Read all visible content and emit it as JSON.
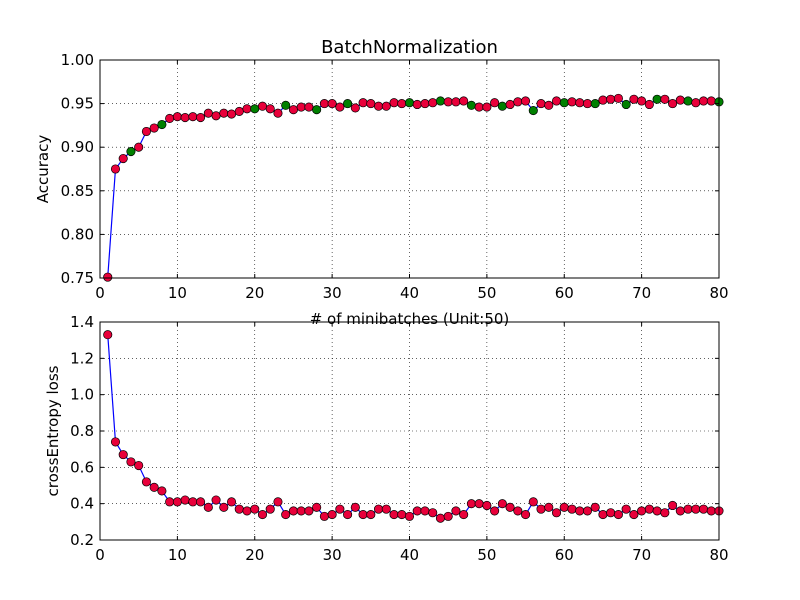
{
  "figure": {
    "background": "#ffffff",
    "line_color": "#0000ff",
    "marker_fill": "#e8003a",
    "marker_highlight_fill": "#008000"
  },
  "chart_data": [
    {
      "type": "line",
      "title": "BatchNormalization",
      "xlabel": "# of minibatches (Unit:50)",
      "ylabel": "Accuracy",
      "xlim": [
        0,
        80
      ],
      "ylim": [
        0.75,
        1.0
      ],
      "xticks": [
        "0",
        "10",
        "20",
        "30",
        "40",
        "50",
        "60",
        "70",
        "80"
      ],
      "yticks": [
        "0.75",
        "0.80",
        "0.85",
        "0.90",
        "0.95",
        "1.00"
      ],
      "grid": true,
      "series": [
        {
          "x": [
            1,
            2,
            3,
            4,
            5,
            6,
            7,
            8,
            9,
            10,
            11,
            12,
            13,
            14,
            15,
            16,
            17,
            18,
            19,
            20,
            21,
            22,
            23,
            24,
            25,
            26,
            27,
            28,
            29,
            30,
            31,
            32,
            33,
            34,
            35,
            36,
            37,
            38,
            39,
            40,
            41,
            42,
            43,
            44,
            45,
            46,
            47,
            48,
            49,
            50,
            51,
            52,
            53,
            54,
            55,
            56,
            57,
            58,
            59,
            60,
            61,
            62,
            63,
            64,
            65,
            66,
            67,
            68,
            69,
            70,
            71,
            72,
            73,
            74,
            75,
            76,
            77,
            78,
            79,
            80
          ],
          "values": [
            0.751,
            0.875,
            0.887,
            0.895,
            0.9,
            0.918,
            0.922,
            0.926,
            0.933,
            0.935,
            0.934,
            0.935,
            0.934,
            0.939,
            0.936,
            0.939,
            0.938,
            0.941,
            0.944,
            0.944,
            0.947,
            0.944,
            0.939,
            0.948,
            0.943,
            0.946,
            0.946,
            0.943,
            0.95,
            0.95,
            0.946,
            0.95,
            0.945,
            0.951,
            0.95,
            0.947,
            0.947,
            0.951,
            0.95,
            0.951,
            0.949,
            0.95,
            0.951,
            0.953,
            0.952,
            0.952,
            0.953,
            0.948,
            0.946,
            0.946,
            0.951,
            0.947,
            0.949,
            0.952,
            0.953,
            0.942,
            0.95,
            0.948,
            0.953,
            0.951,
            0.952,
            0.951,
            0.95,
            0.95,
            0.954,
            0.955,
            0.956,
            0.949,
            0.955,
            0.953,
            0.949,
            0.955,
            0.955,
            0.95,
            0.954,
            0.953,
            0.951,
            0.953,
            0.953,
            0.952
          ],
          "highlighted_x": [
            4,
            8,
            20,
            24,
            28,
            32,
            40,
            44,
            48,
            52,
            56,
            60,
            64,
            68,
            72,
            76,
            80
          ]
        }
      ]
    },
    {
      "type": "line",
      "title": "",
      "xlabel": "",
      "ylabel": "crossEntropy loss",
      "xlim": [
        0,
        80
      ],
      "ylim": [
        0.2,
        1.4
      ],
      "xticks": [
        "0",
        "10",
        "20",
        "30",
        "40",
        "50",
        "60",
        "70",
        "80"
      ],
      "yticks": [
        "0.2",
        "0.4",
        "0.6",
        "0.8",
        "1.0",
        "1.2",
        "1.4"
      ],
      "grid": true,
      "series": [
        {
          "x": [
            1,
            2,
            3,
            4,
            5,
            6,
            7,
            8,
            9,
            10,
            11,
            12,
            13,
            14,
            15,
            16,
            17,
            18,
            19,
            20,
            21,
            22,
            23,
            24,
            25,
            26,
            27,
            28,
            29,
            30,
            31,
            32,
            33,
            34,
            35,
            36,
            37,
            38,
            39,
            40,
            41,
            42,
            43,
            44,
            45,
            46,
            47,
            48,
            49,
            50,
            51,
            52,
            53,
            54,
            55,
            56,
            57,
            58,
            59,
            60,
            61,
            62,
            63,
            64,
            65,
            66,
            67,
            68,
            69,
            70,
            71,
            72,
            73,
            74,
            75,
            76,
            77,
            78,
            79,
            80
          ],
          "values": [
            1.33,
            0.74,
            0.67,
            0.63,
            0.61,
            0.52,
            0.49,
            0.47,
            0.41,
            0.41,
            0.42,
            0.41,
            0.41,
            0.38,
            0.42,
            0.38,
            0.41,
            0.37,
            0.36,
            0.37,
            0.34,
            0.37,
            0.41,
            0.34,
            0.36,
            0.36,
            0.36,
            0.38,
            0.33,
            0.34,
            0.37,
            0.34,
            0.38,
            0.34,
            0.34,
            0.37,
            0.37,
            0.34,
            0.34,
            0.33,
            0.36,
            0.36,
            0.35,
            0.32,
            0.33,
            0.36,
            0.34,
            0.4,
            0.4,
            0.39,
            0.36,
            0.4,
            0.38,
            0.36,
            0.34,
            0.41,
            0.37,
            0.38,
            0.35,
            0.38,
            0.37,
            0.36,
            0.36,
            0.38,
            0.34,
            0.35,
            0.34,
            0.37,
            0.34,
            0.36,
            0.37,
            0.36,
            0.35,
            0.39,
            0.36,
            0.37,
            0.37,
            0.37,
            0.36,
            0.36
          ]
        }
      ]
    }
  ]
}
